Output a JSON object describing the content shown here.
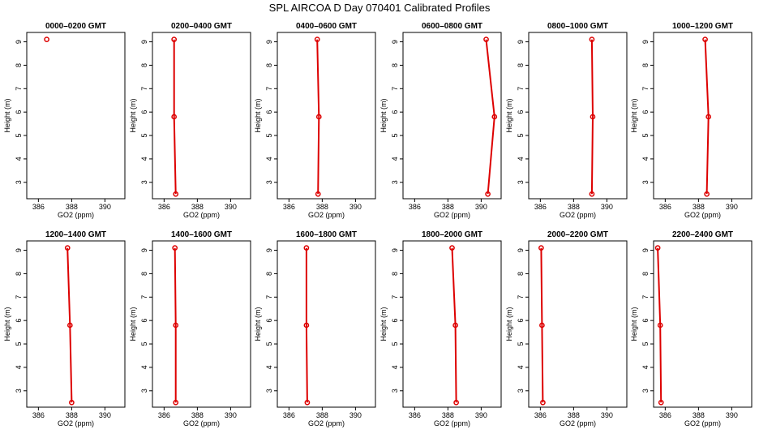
{
  "title": "SPL AIRCOA D  Day 070401  Calibrated Profiles",
  "colors": {
    "series": "#dd0000",
    "axis": "#000000"
  },
  "chart_data": {
    "type": "line",
    "layout": {
      "rows": 2,
      "cols": 6
    },
    "xlabel": "GO2 (ppm)",
    "ylabel": "Height (m)",
    "xlim": [
      385.3,
      391.2
    ],
    "ylim": [
      2.3,
      9.4
    ],
    "xticks": [
      386,
      388,
      390
    ],
    "yticks": [
      3,
      4,
      5,
      6,
      7,
      8,
      9
    ],
    "panels": [
      {
        "title": "0000–0200 GMT",
        "points": [
          {
            "x": 386.5,
            "y": 9.1
          }
        ]
      },
      {
        "title": "0200–0400 GMT",
        "points": [
          {
            "x": 386.6,
            "y": 9.1
          },
          {
            "x": 386.6,
            "y": 5.8
          },
          {
            "x": 386.7,
            "y": 2.5
          }
        ]
      },
      {
        "title": "0400–0600 GMT",
        "points": [
          {
            "x": 387.7,
            "y": 9.1
          },
          {
            "x": 387.8,
            "y": 5.8
          },
          {
            "x": 387.75,
            "y": 2.5
          }
        ]
      },
      {
        "title": "0600–0800 GMT",
        "points": [
          {
            "x": 390.3,
            "y": 9.1
          },
          {
            "x": 390.8,
            "y": 5.8
          },
          {
            "x": 390.4,
            "y": 2.5
          }
        ]
      },
      {
        "title": "0800–1000 GMT",
        "points": [
          {
            "x": 389.1,
            "y": 9.1
          },
          {
            "x": 389.15,
            "y": 5.8
          },
          {
            "x": 389.1,
            "y": 2.5
          }
        ]
      },
      {
        "title": "1000–1200 GMT",
        "points": [
          {
            "x": 388.4,
            "y": 9.1
          },
          {
            "x": 388.6,
            "y": 5.8
          },
          {
            "x": 388.5,
            "y": 2.5
          }
        ]
      },
      {
        "title": "1200–1400 GMT",
        "points": [
          {
            "x": 387.75,
            "y": 9.1
          },
          {
            "x": 387.9,
            "y": 5.8
          },
          {
            "x": 388.0,
            "y": 2.5
          }
        ]
      },
      {
        "title": "1400–1600 GMT",
        "points": [
          {
            "x": 386.65,
            "y": 9.1
          },
          {
            "x": 386.7,
            "y": 5.8
          },
          {
            "x": 386.7,
            "y": 2.5
          }
        ]
      },
      {
        "title": "1600–1800 GMT",
        "points": [
          {
            "x": 387.05,
            "y": 9.1
          },
          {
            "x": 387.05,
            "y": 5.8
          },
          {
            "x": 387.1,
            "y": 2.5
          }
        ]
      },
      {
        "title": "1800–2000 GMT",
        "points": [
          {
            "x": 388.25,
            "y": 9.1
          },
          {
            "x": 388.45,
            "y": 5.8
          },
          {
            "x": 388.5,
            "y": 2.5
          }
        ]
      },
      {
        "title": "2000–2200 GMT",
        "points": [
          {
            "x": 386.05,
            "y": 9.1
          },
          {
            "x": 386.1,
            "y": 5.8
          },
          {
            "x": 386.15,
            "y": 2.5
          }
        ]
      },
      {
        "title": "2200–2400 GMT",
        "points": [
          {
            "x": 385.55,
            "y": 9.1
          },
          {
            "x": 385.7,
            "y": 5.8
          },
          {
            "x": 385.75,
            "y": 2.5
          }
        ]
      }
    ]
  }
}
